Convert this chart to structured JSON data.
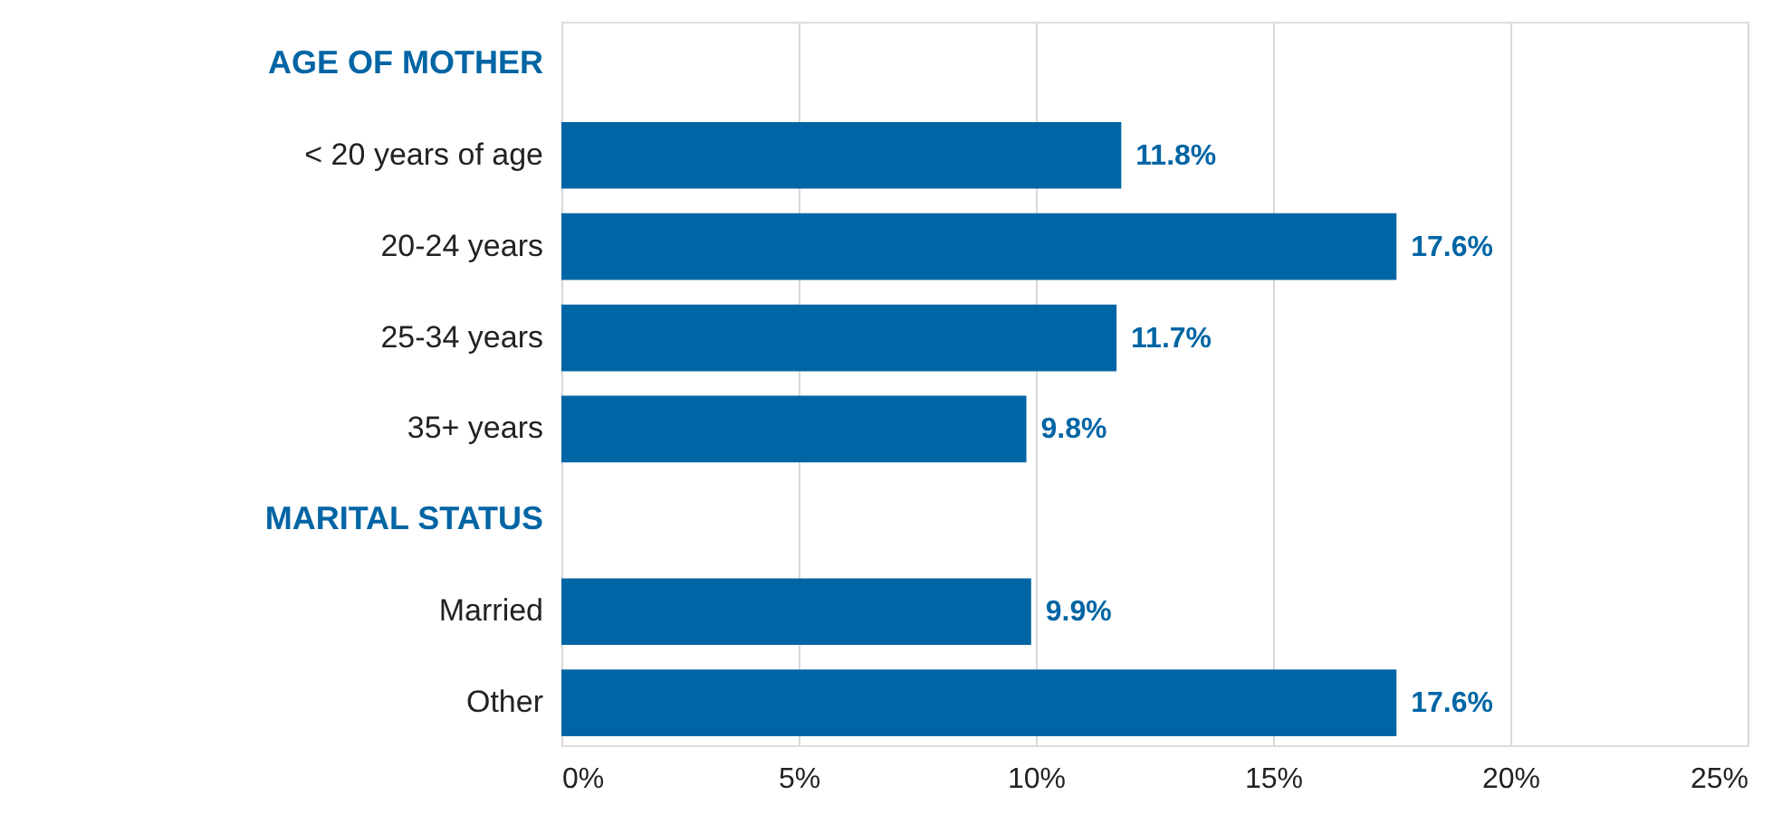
{
  "chart_data": {
    "type": "bar",
    "orientation": "horizontal",
    "categories": [
      "AGE OF MOTHER",
      "< 20 years of age",
      "20-24 years",
      "25-34 years",
      "35+ years",
      "MARITAL STATUS",
      "Married",
      "Other"
    ],
    "series": [
      {
        "color": "#0065a4",
        "values": [
          null,
          11.8,
          17.6,
          11.7,
          9.8,
          null,
          9.9,
          17.6
        ],
        "value_labels": [
          null,
          "11.8%",
          "17.6%",
          "11.7%",
          "9.8%",
          null,
          "9.9%",
          "17.6%"
        ]
      }
    ],
    "xlim": [
      0,
      25
    ],
    "xticks": [
      {
        "value": 0,
        "label": "0%"
      },
      {
        "value": 5,
        "label": "5%"
      },
      {
        "value": 10,
        "label": "10%"
      },
      {
        "value": 15,
        "label": "15%"
      },
      {
        "value": 20,
        "label": "20%"
      },
      {
        "value": 25,
        "label": "25%"
      }
    ],
    "grid": "x"
  }
}
